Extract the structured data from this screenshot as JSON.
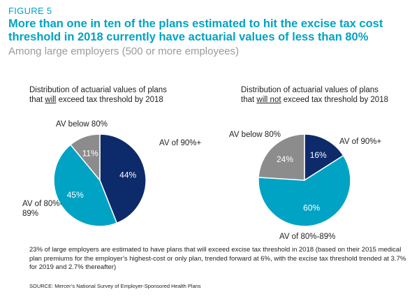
{
  "figure_label": "FIGURE 5",
  "headline": "More than one in ten of the plans estimated to hit the excise tax cost threshold in 2018 currently have actuarial values of less than 80%",
  "subhead": "Among large employers (500 or more employees)",
  "colors": {
    "av90": "#0d2a6b",
    "av80_89": "#00a3c4",
    "below80": "#8c8c8c",
    "accent": "#00a3c4"
  },
  "chart_data": [
    {
      "type": "pie",
      "title": {
        "pre": "Distribution of actuarial values of plans",
        "line2_pre": "that ",
        "emph": "will",
        "line2_post": " exceed tax threshold by 2018"
      },
      "categories": [
        "AV of 90%+",
        "AV of 80%-89%",
        "AV below 80%"
      ],
      "outer_labels": [
        "AV of 90%+",
        "AV of 80%-\n89%",
        "AV below 80%"
      ],
      "values": [
        44,
        45,
        11
      ],
      "value_labels": [
        "44%",
        "45%",
        "11%"
      ]
    },
    {
      "type": "pie",
      "title": {
        "pre": "Distribution of actuarial values of plans",
        "line2_pre": "that ",
        "emph": "will not",
        "line2_post": " exceed tax threshold by 2018"
      },
      "categories": [
        "AV of 90%+",
        "AV of 80%-89%",
        "AV below 80%"
      ],
      "outer_labels": [
        "AV of 90%+",
        "AV of 80%-89%",
        "AV below 80%"
      ],
      "values": [
        16,
        60,
        24
      ],
      "value_labels": [
        "16%",
        "60%",
        "24%"
      ]
    }
  ],
  "note": "23% of large employers are estimated to have plans that will exceed excise tax threshold in 2018 (based on their 2015 medical plan premiums for the employer’s highest-cost or only plan, trended forward at 6%, with the excise tax threshold trended at 3.7% for 2019 and 2.7% thereafter)",
  "source": "SOURCE: Mercer’s National Survey of Employer-Sponsored Health Plans"
}
